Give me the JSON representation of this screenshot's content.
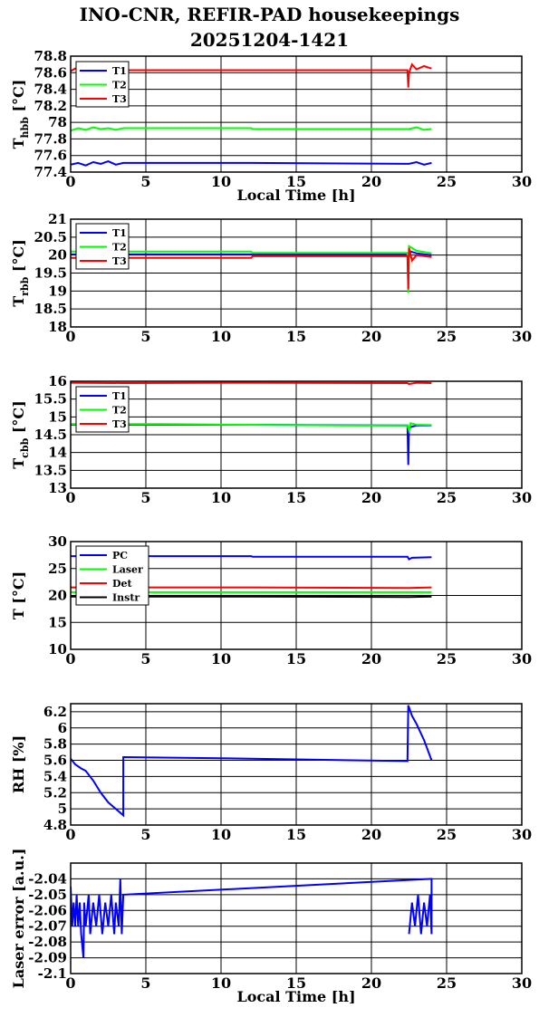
{
  "title_line1": "INO-CNR, REFIR-PAD housekeepings",
  "title_line2": "20251204-1421",
  "chart_data": [
    {
      "type": "line",
      "ylabel_main": "T",
      "ylabel_sub": "hbb",
      "ylabel_rest": " [°C]",
      "xlabel": "Local Time [h]",
      "xlim": [
        0,
        30
      ],
      "ylim": [
        77.4,
        78.8
      ],
      "xticks": [
        0,
        5,
        10,
        15,
        20,
        25,
        30
      ],
      "yticks": [
        77.4,
        77.6,
        77.8,
        78,
        78.2,
        78.4,
        78.6,
        78.8
      ],
      "grid": true,
      "legend": "top-left",
      "series": [
        {
          "name": "T1",
          "color": "#0000ff",
          "points": [
            [
              0,
              77.49
            ],
            [
              0.5,
              77.51
            ],
            [
              1,
              77.48
            ],
            [
              1.5,
              77.52
            ],
            [
              2,
              77.5
            ],
            [
              2.5,
              77.53
            ],
            [
              3,
              77.49
            ],
            [
              3.5,
              77.51
            ],
            [
              12,
              77.51
            ],
            [
              22.5,
              77.5
            ],
            [
              23,
              77.52
            ],
            [
              23.5,
              77.49
            ],
            [
              24,
              77.51
            ]
          ]
        },
        {
          "name": "T2",
          "color": "#00ff00",
          "points": [
            [
              0,
              77.9
            ],
            [
              0.5,
              77.93
            ],
            [
              1,
              77.91
            ],
            [
              1.5,
              77.94
            ],
            [
              2,
              77.92
            ],
            [
              2.5,
              77.93
            ],
            [
              3,
              77.91
            ],
            [
              3.5,
              77.93
            ],
            [
              12,
              77.93
            ],
            [
              12.1,
              77.92
            ],
            [
              22.5,
              77.92
            ],
            [
              23,
              77.94
            ],
            [
              23.5,
              77.91
            ],
            [
              24,
              77.92
            ]
          ]
        },
        {
          "name": "T3",
          "color": "#ff0000",
          "points": [
            [
              0,
              78.62
            ],
            [
              0.3,
              78.65
            ],
            [
              1,
              78.62
            ],
            [
              2,
              78.63
            ],
            [
              3,
              78.62
            ],
            [
              3.5,
              78.63
            ],
            [
              12,
              78.63
            ],
            [
              22.4,
              78.63
            ],
            [
              22.45,
              78.42
            ],
            [
              22.5,
              78.6
            ],
            [
              22.7,
              78.7
            ],
            [
              23,
              78.64
            ],
            [
              23.5,
              78.68
            ],
            [
              24,
              78.65
            ]
          ]
        }
      ]
    },
    {
      "type": "line",
      "ylabel_main": "T",
      "ylabel_sub": "rbb",
      "ylabel_rest": " [°C]",
      "xlabel": "",
      "xlim": [
        0,
        30
      ],
      "ylim": [
        18,
        21
      ],
      "xticks": [
        0,
        5,
        10,
        15,
        20,
        25,
        30
      ],
      "yticks": [
        18,
        18.5,
        19,
        19.5,
        20,
        20.5,
        21
      ],
      "grid": true,
      "legend": "top-left",
      "series": [
        {
          "name": "T1",
          "color": "#0000ff",
          "points": [
            [
              0,
              20.02
            ],
            [
              12,
              20.02
            ],
            [
              22.4,
              20.02
            ],
            [
              22.5,
              19.95
            ],
            [
              22.6,
              20.1
            ],
            [
              23,
              20.05
            ],
            [
              24,
              20.0
            ]
          ]
        },
        {
          "name": "T2",
          "color": "#00ff00",
          "points": [
            [
              0,
              20.1
            ],
            [
              12,
              20.1
            ],
            [
              12.1,
              20.06
            ],
            [
              22.4,
              20.06
            ],
            [
              22.45,
              18.95
            ],
            [
              22.5,
              20.25
            ],
            [
              23,
              20.12
            ],
            [
              24,
              20.05
            ]
          ]
        },
        {
          "name": "T3",
          "color": "#ff0000",
          "points": [
            [
              0,
              19.92
            ],
            [
              12,
              19.92
            ],
            [
              12.1,
              19.97
            ],
            [
              22.4,
              19.97
            ],
            [
              22.45,
              19.05
            ],
            [
              22.5,
              20.2
            ],
            [
              22.7,
              19.85
            ],
            [
              23,
              20.0
            ],
            [
              24,
              19.95
            ]
          ]
        }
      ]
    },
    {
      "type": "line",
      "ylabel_main": "T",
      "ylabel_sub": "cbb",
      "ylabel_rest": " [°C]",
      "xlabel": "",
      "xlim": [
        0,
        30
      ],
      "ylim": [
        13,
        16
      ],
      "xticks": [
        0,
        5,
        10,
        15,
        20,
        25,
        30
      ],
      "yticks": [
        13,
        13.5,
        14,
        14.5,
        15,
        15.5,
        16
      ],
      "grid": true,
      "legend": "top-left",
      "series": [
        {
          "name": "T1",
          "color": "#0000ff",
          "points": [
            [
              0,
              14.78
            ],
            [
              12,
              14.78
            ],
            [
              22.4,
              14.76
            ],
            [
              22.45,
              13.65
            ],
            [
              22.5,
              14.7
            ],
            [
              23,
              14.76
            ],
            [
              24,
              14.76
            ]
          ]
        },
        {
          "name": "T2",
          "color": "#00ff00",
          "points": [
            [
              0,
              14.8
            ],
            [
              6,
              14.8
            ],
            [
              12,
              14.78
            ],
            [
              18,
              14.76
            ],
            [
              22.4,
              14.76
            ],
            [
              22.5,
              14.62
            ],
            [
              22.6,
              14.82
            ],
            [
              23,
              14.78
            ],
            [
              24,
              14.77
            ]
          ]
        },
        {
          "name": "T3",
          "color": "#ff0000",
          "points": [
            [
              0,
              15.96
            ],
            [
              3.5,
              15.95
            ],
            [
              12,
              15.96
            ],
            [
              22.4,
              15.95
            ],
            [
              22.5,
              15.92
            ],
            [
              23,
              15.96
            ],
            [
              24,
              15.95
            ]
          ]
        }
      ]
    },
    {
      "type": "line",
      "ylabel_main": "T [°C]",
      "ylabel_sub": "",
      "ylabel_rest": "",
      "xlabel": "",
      "xlim": [
        0,
        30
      ],
      "ylim": [
        10,
        30
      ],
      "xticks": [
        0,
        5,
        10,
        15,
        20,
        25,
        30
      ],
      "yticks": [
        10,
        15,
        20,
        25,
        30
      ],
      "grid": true,
      "legend": "top-left",
      "series": [
        {
          "name": "PC",
          "color": "#0000ff",
          "points": [
            [
              0,
              27.3
            ],
            [
              12,
              27.3
            ],
            [
              12.1,
              27.2
            ],
            [
              22.4,
              27.2
            ],
            [
              22.5,
              26.7
            ],
            [
              22.7,
              27.0
            ],
            [
              24,
              27.1
            ]
          ]
        },
        {
          "name": "Laser",
          "color": "#00ff00",
          "points": [
            [
              0,
              20.6
            ],
            [
              12,
              20.6
            ],
            [
              22.5,
              20.6
            ],
            [
              24,
              20.6
            ]
          ]
        },
        {
          "name": "Det",
          "color": "#ff0000",
          "points": [
            [
              0,
              21.5
            ],
            [
              12,
              21.5
            ],
            [
              22.5,
              21.4
            ],
            [
              24,
              21.5
            ]
          ]
        },
        {
          "name": "Instr",
          "color": "#000000",
          "points": [
            [
              0,
              19.8
            ],
            [
              12,
              19.8
            ],
            [
              22.5,
              19.7
            ],
            [
              24,
              19.8
            ]
          ]
        }
      ]
    },
    {
      "type": "line",
      "ylabel_main": "RH [%]",
      "ylabel_sub": "",
      "ylabel_rest": "",
      "xlabel": "",
      "xlim": [
        0,
        30
      ],
      "ylim": [
        4.8,
        6.3
      ],
      "xticks": [
        0,
        5,
        10,
        15,
        20,
        25,
        30
      ],
      "yticks": [
        4.8,
        5,
        5.2,
        5.4,
        5.6,
        5.8,
        6,
        6.2
      ],
      "grid": true,
      "legend": "none",
      "series": [
        {
          "name": "",
          "color": "#0000ff",
          "points": [
            [
              0,
              5.62
            ],
            [
              0.3,
              5.55
            ],
            [
              0.7,
              5.5
            ],
            [
              1,
              5.47
            ],
            [
              1.5,
              5.35
            ],
            [
              2,
              5.2
            ],
            [
              2.5,
              5.08
            ],
            [
              3,
              5.0
            ],
            [
              3.5,
              4.92
            ],
            [
              3.5,
              5.64
            ],
            [
              12,
              5.62
            ],
            [
              22.4,
              5.59
            ],
            [
              22.45,
              6.28
            ],
            [
              22.7,
              6.15
            ],
            [
              23,
              6.05
            ],
            [
              23.5,
              5.85
            ],
            [
              24,
              5.6
            ]
          ]
        }
      ]
    },
    {
      "type": "line",
      "ylabel_main": "Laser error [a.u.]",
      "ylabel_sub": "",
      "ylabel_rest": "",
      "xlabel": "Local Time [h]",
      "xlim": [
        0,
        30
      ],
      "ylim": [
        -2.1,
        -2.03
      ],
      "xticks": [
        0,
        5,
        10,
        15,
        20,
        25,
        30
      ],
      "yticks": [
        -2.1,
        -2.09,
        -2.08,
        -2.07,
        -2.06,
        -2.05,
        -2.04
      ],
      "grid": true,
      "legend": "none",
      "series": [
        {
          "name": "",
          "color": "#0000ff",
          "points": [
            [
              0,
              -2.045
            ],
            [
              0.1,
              -2.07
            ],
            [
              0.2,
              -2.055
            ],
            [
              0.3,
              -2.07
            ],
            [
              0.4,
              -2.05
            ],
            [
              0.5,
              -2.07
            ],
            [
              0.6,
              -2.055
            ],
            [
              0.7,
              -2.075
            ],
            [
              0.85,
              -2.09
            ],
            [
              0.9,
              -2.055
            ],
            [
              1.0,
              -2.07
            ],
            [
              1.2,
              -2.05
            ],
            [
              1.3,
              -2.075
            ],
            [
              1.5,
              -2.055
            ],
            [
              1.7,
              -2.07
            ],
            [
              1.9,
              -2.05
            ],
            [
              2.1,
              -2.075
            ],
            [
              2.3,
              -2.055
            ],
            [
              2.5,
              -2.07
            ],
            [
              2.7,
              -2.05
            ],
            [
              2.9,
              -2.075
            ],
            [
              3.0,
              -2.055
            ],
            [
              3.2,
              -2.07
            ],
            [
              3.3,
              -2.04
            ],
            [
              3.4,
              -2.075
            ],
            [
              3.5,
              -2.05
            ],
            [
              24,
              -2.04
            ],
            [
              24,
              -2.075
            ],
            [
              23.9,
              -2.05
            ],
            [
              23.7,
              -2.07
            ],
            [
              23.5,
              -2.055
            ],
            [
              23.3,
              -2.075
            ],
            [
              23.1,
              -2.05
            ],
            [
              22.9,
              -2.07
            ],
            [
              22.7,
              -2.055
            ],
            [
              22.5,
              -2.075
            ]
          ]
        }
      ]
    }
  ]
}
